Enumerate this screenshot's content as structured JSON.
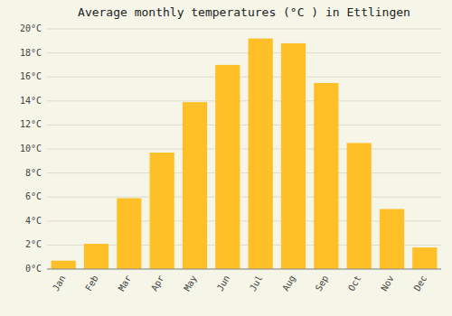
{
  "chart_data": {
    "type": "bar",
    "title": "Average monthly temperatures (°C ) in Ettlingen",
    "categories": [
      "Jan",
      "Feb",
      "Mar",
      "Apr",
      "May",
      "Jun",
      "Jul",
      "Aug",
      "Sep",
      "Oct",
      "Nov",
      "Dec"
    ],
    "values": [
      0.7,
      2.1,
      5.9,
      9.7,
      13.9,
      17.0,
      19.2,
      18.8,
      15.5,
      10.5,
      5.0,
      1.8
    ],
    "color": "#FFC027",
    "ylim": [
      0,
      20
    ],
    "yticks": [
      {
        "value": 0,
        "label": "0°C"
      },
      {
        "value": 2,
        "label": "2°C"
      },
      {
        "value": 4,
        "label": "4°C"
      },
      {
        "value": 6,
        "label": "6°C"
      },
      {
        "value": 8,
        "label": "8°C"
      },
      {
        "value": 10,
        "label": "10°C"
      },
      {
        "value": 12,
        "label": "12°C"
      },
      {
        "value": 14,
        "label": "14°C"
      },
      {
        "value": 16,
        "label": "16°C"
      },
      {
        "value": 18,
        "label": "18°C"
      },
      {
        "value": 20,
        "label": "20°C"
      }
    ],
    "grid": true
  }
}
